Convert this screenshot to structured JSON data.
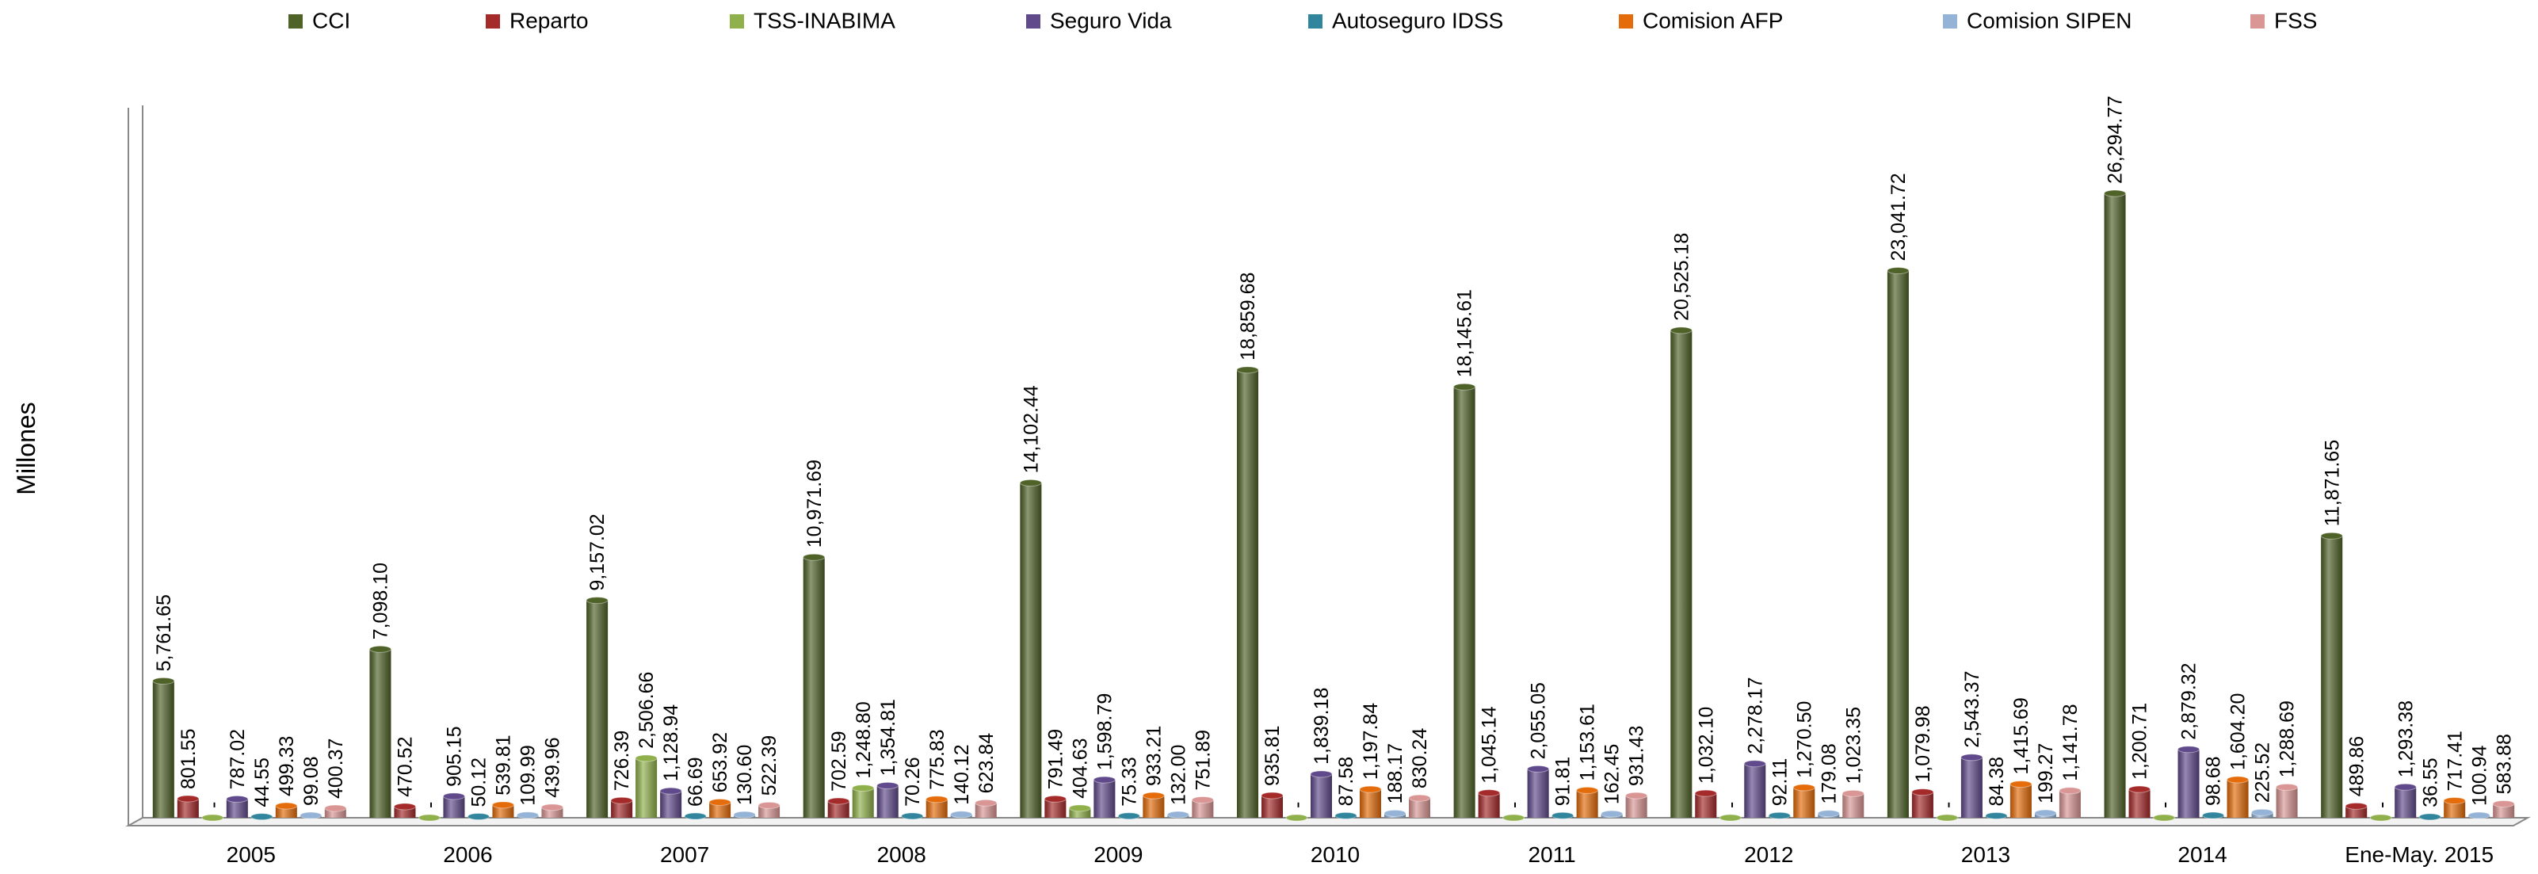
{
  "chart_data": {
    "type": "bar",
    "y_label": "Millones",
    "categories": [
      "2005",
      "2006",
      "2007",
      "2008",
      "2009",
      "2010",
      "2011",
      "2012",
      "2013",
      "2014",
      "Ene-May. 2015"
    ],
    "ylim": [
      0,
      30000
    ],
    "legend": "top",
    "series": [
      {
        "name": "CCI",
        "color": "#4f6228",
        "values": [
          5761.65,
          7098.1,
          9157.02,
          10971.69,
          14102.44,
          18859.68,
          18145.61,
          20525.18,
          23041.72,
          26294.77,
          11871.65
        ],
        "value_labels": [
          "5,761.65",
          "7,098.10",
          "9,157.02",
          "10,971.69",
          "14,102.44",
          "18,859.68",
          "18,145.61",
          "20,525.18",
          "23,041.72",
          "26,294.77",
          "11,871.65"
        ]
      },
      {
        "name": "Reparto",
        "color": "#a52a2a",
        "values": [
          801.55,
          470.52,
          726.39,
          702.59,
          791.49,
          935.81,
          1045.14,
          1032.1,
          1079.98,
          1200.71,
          489.86
        ],
        "value_labels": [
          "801.55",
          "470.52",
          "726.39",
          "702.59",
          "791.49",
          "935.81",
          "1,045.14",
          "1,032.10",
          "1,079.98",
          "1,200.71",
          "489.86"
        ]
      },
      {
        "name": "TSS-INABIMA",
        "color": "#8fb04a",
        "values": [
          0,
          0,
          2506.66,
          1248.8,
          404.63,
          0,
          0,
          0,
          0,
          0,
          0
        ],
        "value_labels": [
          "-",
          "-",
          "2,506.66",
          "1,248.80",
          "404.63",
          "-",
          "-",
          "-",
          "-",
          "-",
          "-"
        ]
      },
      {
        "name": "Seguro Vida",
        "color": "#604a8b",
        "values": [
          787.02,
          905.15,
          1128.94,
          1354.81,
          1598.79,
          1839.18,
          2055.05,
          2278.17,
          2543.37,
          2879.32,
          1293.38
        ],
        "value_labels": [
          "787.02",
          "905.15",
          "1,128.94",
          "1,354.81",
          "1,598.79",
          "1,839.18",
          "2,055.05",
          "2,278.17",
          "2,543.37",
          "2,879.32",
          "1,293.38"
        ]
      },
      {
        "name": "Autoseguro IDSS",
        "color": "#31859c",
        "values": [
          44.55,
          50.12,
          66.69,
          70.26,
          75.33,
          87.58,
          91.81,
          92.11,
          84.38,
          98.68,
          36.55
        ],
        "value_labels": [
          "44.55",
          "50.12",
          "66.69",
          "70.26",
          "75.33",
          "87.58",
          "91.81",
          "92.11",
          "84.38",
          "98.68",
          "36.55"
        ]
      },
      {
        "name": "Comision AFP",
        "color": "#e46c0a",
        "values": [
          499.33,
          539.81,
          653.92,
          775.83,
          933.21,
          1197.84,
          1153.61,
          1270.5,
          1415.69,
          1604.2,
          717.41
        ],
        "value_labels": [
          "499.33",
          "539.81",
          "653.92",
          "775.83",
          "933.21",
          "1,197.84",
          "1,153.61",
          "1,270.50",
          "1,415.69",
          "1,604.20",
          "717.41"
        ]
      },
      {
        "name": "Comision SIPEN",
        "color": "#95b3d7",
        "values": [
          99.08,
          109.99,
          130.6,
          140.12,
          132.0,
          188.17,
          162.45,
          179.08,
          199.27,
          225.52,
          100.94
        ],
        "value_labels": [
          "99.08",
          "109.99",
          "130.60",
          "140.12",
          "132.00",
          "188.17",
          "162.45",
          "179.08",
          "199.27",
          "225.52",
          "100.94"
        ]
      },
      {
        "name": "FSS",
        "color": "#d99694",
        "values": [
          400.37,
          439.96,
          522.39,
          623.84,
          751.89,
          830.24,
          931.43,
          1023.35,
          1141.78,
          1288.69,
          583.88
        ],
        "value_labels": [
          "400.37",
          "439.96",
          "522.39",
          "623.84",
          "751.89",
          "830.24",
          "931.43",
          "1,023.35",
          "1,141.78",
          "1,288.69",
          "583.88"
        ]
      }
    ]
  }
}
